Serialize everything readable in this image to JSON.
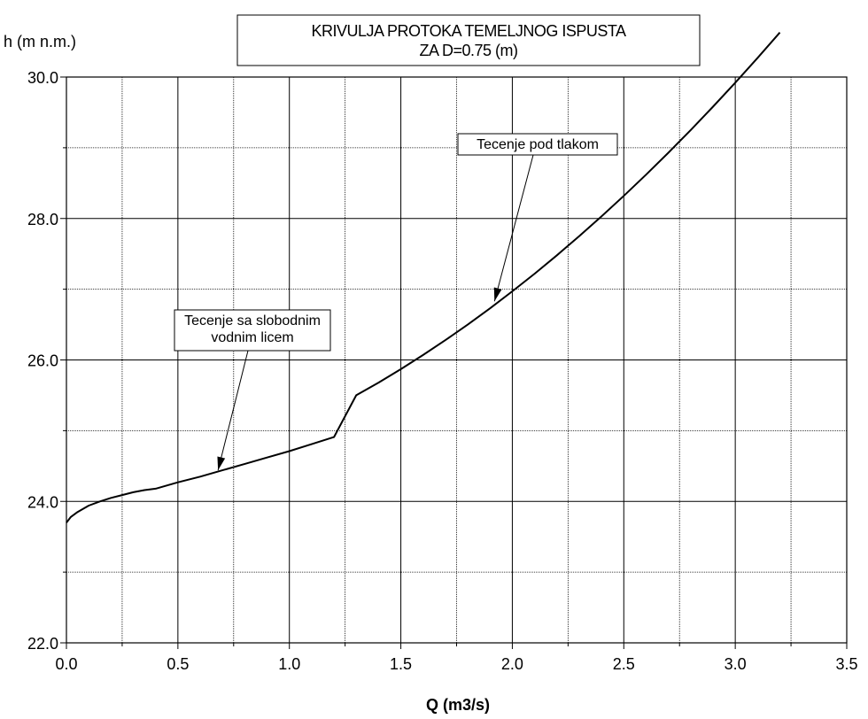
{
  "chart_data": {
    "type": "line",
    "title": "KRIVULJA PROTOKA TEMELJNOG ISPUSTA",
    "subtitle": "ZA D=0.75 (m)",
    "xlabel": "Q (m3/s)",
    "ylabel": "h (m n.m.)",
    "xlim": [
      0.0,
      3.5
    ],
    "ylim": [
      22.0,
      30.0
    ],
    "x_major_ticks": [
      0.0,
      0.5,
      1.0,
      1.5,
      2.0,
      2.5,
      3.0,
      3.5
    ],
    "x_tick_labels": [
      "0.0",
      "0.5",
      "1.0",
      "1.5",
      "2.0",
      "2.5",
      "3.0",
      "3.5"
    ],
    "x_minor_ticks": [
      0.25,
      0.75,
      1.25,
      1.75,
      2.25,
      2.75,
      3.25
    ],
    "y_major_ticks": [
      22.0,
      24.0,
      26.0,
      28.0,
      30.0
    ],
    "y_tick_labels": [
      "22.0",
      "24.0",
      "26.0",
      "28.0",
      "30.0"
    ],
    "y_minor_ticks": [
      23.0,
      25.0,
      27.0,
      29.0
    ],
    "grid": true,
    "series": [
      {
        "x": [
          0.0,
          0.02,
          0.05,
          0.1,
          0.15,
          0.2,
          0.25,
          0.3,
          0.35,
          0.4,
          0.5,
          0.6,
          0.7,
          0.8,
          0.9,
          1.0,
          1.1,
          1.2,
          1.3,
          1.4,
          1.5,
          1.6,
          1.7,
          1.8,
          1.9,
          2.0,
          2.1,
          2.2,
          2.3,
          2.4,
          2.5,
          2.6,
          2.7,
          2.8,
          2.9,
          3.0,
          3.1,
          3.2
        ],
        "y": [
          23.7,
          23.78,
          23.85,
          23.94,
          24.0,
          24.05,
          24.09,
          24.13,
          24.16,
          24.18,
          24.27,
          24.35,
          24.44,
          24.53,
          24.62,
          24.71,
          24.81,
          24.91,
          25.5,
          25.68,
          25.87,
          26.07,
          26.28,
          26.5,
          26.73,
          26.97,
          27.22,
          27.48,
          27.75,
          28.03,
          28.32,
          28.62,
          28.93,
          29.25,
          29.58,
          29.92,
          30.27,
          30.63
        ]
      }
    ],
    "annotations": [
      {
        "lines": [
          "Tecenje pod tlakom"
        ],
        "target": [
          1.92,
          26.83
        ]
      },
      {
        "lines": [
          "Tecenje sa slobodnim",
          "vodnim licem"
        ],
        "target": [
          0.68,
          24.44
        ]
      }
    ]
  },
  "colors": {
    "line": "#000000",
    "grid": "#000000",
    "background": "#ffffff"
  }
}
